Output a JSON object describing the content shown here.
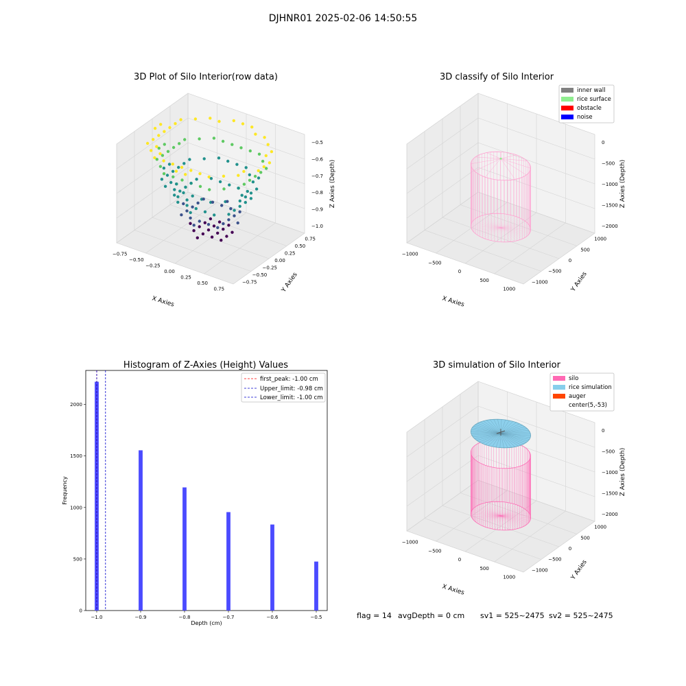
{
  "suptitle": "DJHNR01 2025-02-06 14:50:55",
  "status_line": {
    "flag": "flag = 14",
    "avg_depth": "avgDepth = 0 cm",
    "sv1": "sv1 = 525~2475",
    "sv2": "sv2 = 525~2475"
  },
  "colors": {
    "viridis": [
      "#440154",
      "#3b528b",
      "#21918c",
      "#5ec962",
      "#fde725"
    ],
    "hist_bar": "#4b4bff",
    "first_peak": "#ff0000",
    "limit_line": "#0000cc",
    "silo": "#ff69b4",
    "rice_simulation": "#87ceeb",
    "auger": "#ff4500",
    "inner_wall": "#808080",
    "rice_surface": "#90ee90",
    "obstacle": "#ff0000",
    "noise": "#0000ff"
  },
  "chart_data": [
    {
      "id": "raw",
      "type": "scatter",
      "title": "3D Plot of Silo Interior(row data)",
      "xlabel": "X Axies",
      "ylabel": "Y Axies",
      "zlabel": "Z Axies (Depth)",
      "x_ticks": [
        "−0.75",
        "−0.50",
        "−0.25",
        "0.00",
        "0.25",
        "0.50",
        "0.75"
      ],
      "y_ticks": [
        "−0.75",
        "−0.50",
        "−0.25",
        "0.00",
        "0.25",
        "0.50",
        "0.75"
      ],
      "z_ticks": [
        "−1.0",
        "−0.9",
        "−0.8",
        "−0.7",
        "−0.6",
        "−0.5"
      ],
      "xlim": [
        -0.9,
        0.9
      ],
      "ylim": [
        -0.9,
        0.9
      ],
      "zlim": [
        -1.05,
        -0.45
      ],
      "layers": [
        {
          "z": -1.0,
          "radius": 0.3
        },
        {
          "z": -0.9,
          "radius": 0.42
        },
        {
          "z": -0.8,
          "radius": 0.54
        },
        {
          "z": -0.7,
          "radius": 0.66
        },
        {
          "z": -0.6,
          "radius": 0.76
        },
        {
          "z": -0.5,
          "radius": 0.85
        }
      ]
    },
    {
      "id": "classify",
      "type": "scatter",
      "title": "3D classify of Silo Interior",
      "xlabel": "X Axies",
      "ylabel": "Y Axies",
      "zlabel": "Z Axies (Depth)",
      "x_ticks": [
        "−1000",
        "−500",
        "0",
        "500",
        "1000"
      ],
      "y_ticks": [
        "−1000",
        "−500",
        "0",
        "500",
        "1000"
      ],
      "z_ticks": [
        "−2000",
        "−1500",
        "−1000",
        "−500",
        "0"
      ],
      "legend": [
        "inner wall",
        "rice surface",
        "obstacle",
        "noise"
      ],
      "legend_position": "upper-right",
      "silo_radius": 525,
      "silo_bottom": -2000,
      "silo_top": -500
    },
    {
      "id": "hist",
      "type": "bar",
      "title": "Histogram of Z-Axies (Height) Values",
      "xlabel": "Depth (cm)",
      "ylabel": "Frequency",
      "x_ticks": [
        "−1.0",
        "−0.9",
        "−0.8",
        "−0.7",
        "−0.6",
        "−0.5"
      ],
      "y_ticks": [
        "0",
        "500",
        "1000",
        "1500",
        "2000"
      ],
      "xlim": [
        -1.025,
        -0.475
      ],
      "ylim": [
        0,
        2330
      ],
      "bins": [
        -1.0,
        -0.9,
        -0.8,
        -0.7,
        -0.6,
        -0.5
      ],
      "values": [
        2220,
        1555,
        1195,
        955,
        835,
        475
      ],
      "bar_width": 0.009,
      "vlines": [
        {
          "label": "first_peak: -1.00 cm",
          "x": -1.0,
          "color": "#ff0000"
        },
        {
          "label": "Upper_limit: -0.98 cm",
          "x": -0.98,
          "color": "#0000cc"
        },
        {
          "label": "Lower_limit: -1.00 cm",
          "x": -1.0,
          "color": "#0000cc"
        }
      ],
      "legend_position": "upper-right"
    },
    {
      "id": "sim",
      "type": "scatter",
      "title": "3D simulation of Silo Interior",
      "xlabel": "X Axies",
      "ylabel": "Y Axies",
      "zlabel": "Z Axies (Depth)",
      "x_ticks": [
        "−1000",
        "−500",
        "0",
        "500",
        "1000"
      ],
      "y_ticks": [
        "−1000",
        "−500",
        "0",
        "500",
        "1000"
      ],
      "z_ticks": [
        "−2000",
        "−1500",
        "−1000",
        "−500",
        "0"
      ],
      "legend": [
        "silo",
        "rice simulation",
        "auger",
        "center(5,-53)"
      ],
      "legend_position": "upper-right",
      "silo_radius": 525,
      "silo_bottom": -2000,
      "silo_top": -500,
      "rice_level": 0
    }
  ]
}
